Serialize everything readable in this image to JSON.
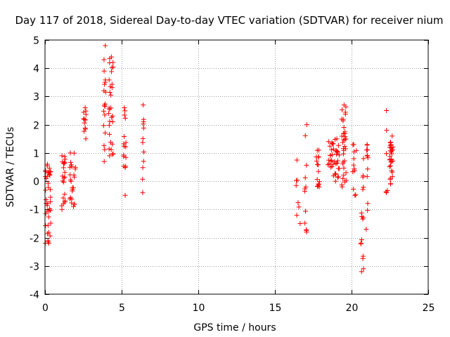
{
  "chart_data": {
    "type": "scatter",
    "title": "Day 117 of 2018, Sidereal Day-to-day VTEC variation (SDTVAR) for receiver nium",
    "xlabel": "GPS time / hours",
    "ylabel": "SDTVAR / TECUs",
    "xlim": [
      0,
      25
    ],
    "ylim": [
      -4,
      5
    ],
    "xticks": [
      0,
      5,
      10,
      15,
      20,
      25
    ],
    "yticks": [
      -4,
      -3,
      -2,
      -1,
      0,
      1,
      2,
      3,
      4,
      5
    ],
    "grid": true,
    "marker": "plus",
    "color": "#ff0000",
    "clusters": [
      {
        "x": 0.2,
        "ymin": -2.2,
        "ymax": 0.6,
        "n": 40,
        "spread": 0.18
      },
      {
        "x": 1.2,
        "ymin": -1.0,
        "ymax": 0.9,
        "n": 22,
        "spread": 0.12
      },
      {
        "x": 1.8,
        "ymin": -0.9,
        "ymax": 1.0,
        "n": 24,
        "spread": 0.2
      },
      {
        "x": 2.6,
        "ymin": 1.5,
        "ymax": 2.6,
        "n": 12,
        "spread": 0.08
      },
      {
        "x": 3.9,
        "ymin": 0.7,
        "ymax": 4.8,
        "n": 18,
        "spread": 0.08
      },
      {
        "x": 4.3,
        "ymin": 0.9,
        "ymax": 4.4,
        "n": 30,
        "spread": 0.15
      },
      {
        "x": 5.2,
        "ymin": -0.5,
        "ymax": 2.6,
        "n": 16,
        "spread": 0.08
      },
      {
        "x": 6.4,
        "ymin": -0.4,
        "ymax": 2.7,
        "n": 12,
        "spread": 0.05
      },
      {
        "x": 16.5,
        "ymin": -1.5,
        "ymax": 0.75,
        "n": 8,
        "spread": 0.15
      },
      {
        "x": 17.0,
        "ymin": -1.8,
        "ymax": 2.0,
        "n": 12,
        "spread": 0.08
      },
      {
        "x": 17.8,
        "ymin": -0.2,
        "ymax": 1.1,
        "n": 16,
        "spread": 0.12
      },
      {
        "x": 18.6,
        "ymin": 0.5,
        "ymax": 1.4,
        "n": 16,
        "spread": 0.2
      },
      {
        "x": 19.0,
        "ymin": 0.0,
        "ymax": 1.5,
        "n": 24,
        "spread": 0.2
      },
      {
        "x": 19.5,
        "ymin": -0.2,
        "ymax": 2.7,
        "n": 34,
        "spread": 0.15
      },
      {
        "x": 20.2,
        "ymin": -0.5,
        "ymax": 1.3,
        "n": 12,
        "spread": 0.15
      },
      {
        "x": 20.7,
        "ymin": -3.2,
        "ymax": 0.8,
        "n": 16,
        "spread": 0.1
      },
      {
        "x": 21.0,
        "ymin": -1.7,
        "ymax": 1.3,
        "n": 12,
        "spread": 0.08
      },
      {
        "x": 22.3,
        "ymin": -0.4,
        "ymax": 2.5,
        "n": 6,
        "spread": 0.05
      },
      {
        "x": 22.6,
        "ymin": -0.1,
        "ymax": 1.6,
        "n": 30,
        "spread": 0.12
      }
    ]
  }
}
